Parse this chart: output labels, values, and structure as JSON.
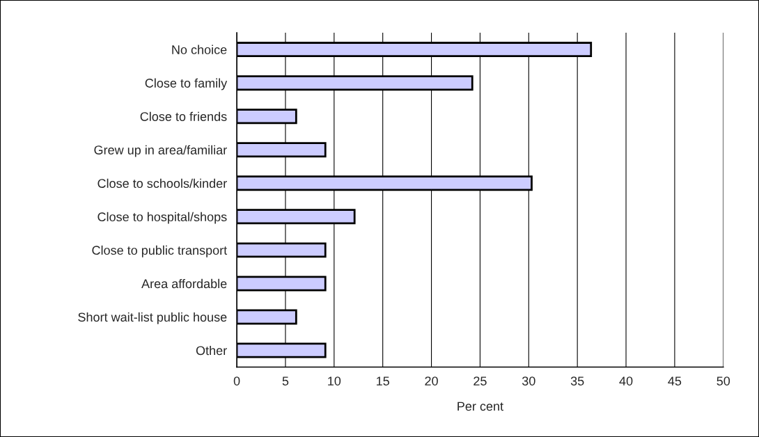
{
  "chart_data": {
    "type": "bar",
    "orientation": "horizontal",
    "xlabel": "Per cent",
    "categories": [
      "No choice",
      "Close to family",
      "Close to friends",
      "Grew up in area/familiar",
      "Close to schools/kinder",
      "Close to hospital/shops",
      "Close to public transport",
      "Area affordable",
      "Short wait-list public house",
      "Other"
    ],
    "values": [
      36.4,
      24.2,
      6.1,
      9.1,
      30.3,
      12.1,
      9.1,
      9.1,
      6.1,
      9.1
    ],
    "color": "#ccccff",
    "xlim": [
      0,
      50
    ],
    "xticks": [
      0,
      5,
      10,
      15,
      20,
      25,
      30,
      35,
      40,
      45,
      50
    ],
    "grid": "x"
  }
}
